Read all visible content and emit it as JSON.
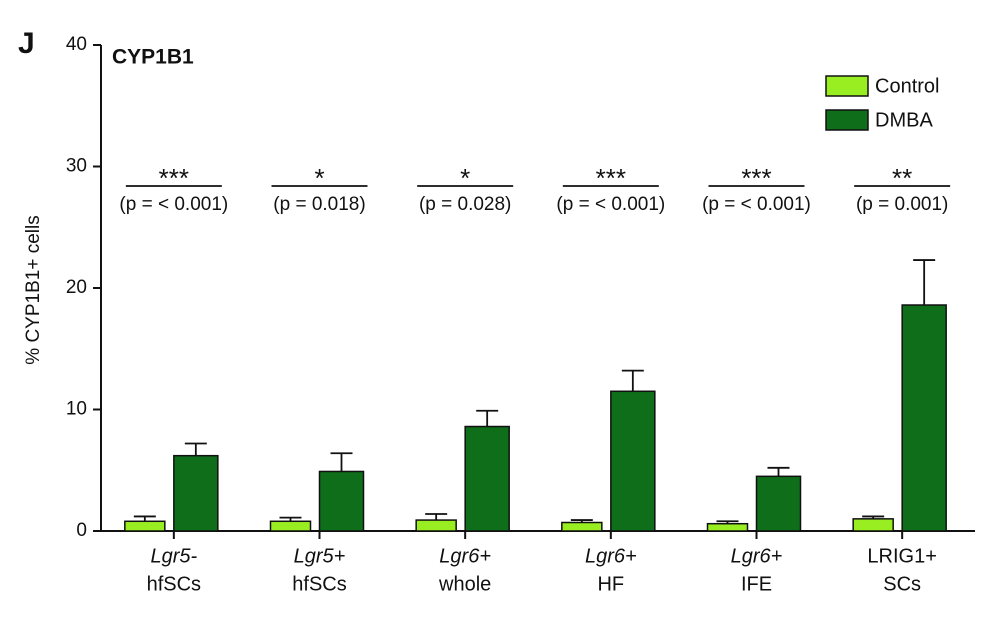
{
  "chart_data": {
    "type": "bar",
    "panel": "J",
    "title": "CYP1B1",
    "y_label": "% CYP1B1+ cells",
    "categories": [
      [
        "Lgr5-",
        "hfSCs"
      ],
      [
        "Lgr5+",
        "hfSCs"
      ],
      [
        "Lgr6+",
        "whole"
      ],
      [
        "Lgr6+",
        "HF"
      ],
      [
        "Lgr6+",
        "IFE"
      ],
      [
        "LRIG1+",
        "SCs"
      ]
    ],
    "series": [
      {
        "name": "Control",
        "color": "#99ee22",
        "values": [
          0.8,
          0.8,
          0.9,
          0.7,
          0.6,
          1.0
        ],
        "errors": [
          0.4,
          0.3,
          0.5,
          0.2,
          0.2,
          0.2
        ]
      },
      {
        "name": "DMBA",
        "color": "#0f6e1a",
        "values": [
          6.2,
          4.9,
          8.6,
          11.5,
          4.5,
          18.6
        ],
        "errors": [
          1.0,
          1.5,
          1.3,
          1.7,
          0.7,
          3.7
        ]
      }
    ],
    "significance": [
      {
        "stars": "***",
        "p": "(p = < 0.001)"
      },
      {
        "stars": "*",
        "p": "(p = 0.018)"
      },
      {
        "stars": "*",
        "p": "(p = 0.028)"
      },
      {
        "stars": "***",
        "p": "(p = < 0.001)"
      },
      {
        "stars": "***",
        "p": "(p = < 0.001)"
      },
      {
        "stars": "**",
        "p": "(p = 0.001)"
      }
    ],
    "ylim": [
      0,
      40
    ],
    "yticks": [
      0,
      10,
      20,
      30,
      40
    ],
    "legend": "top-right"
  }
}
